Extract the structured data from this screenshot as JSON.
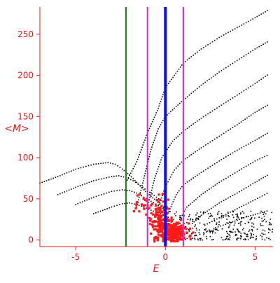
{
  "chart_data": {
    "type": "scatter",
    "title": "",
    "xlabel": "E",
    "ylabel": "<M>",
    "xlim": [
      -7.0,
      6.0
    ],
    "ylim": [
      -8,
      283
    ],
    "xticks": [
      -5,
      0,
      5
    ],
    "yticks": [
      0,
      50,
      100,
      150,
      200,
      250
    ],
    "grid": false,
    "axis_color": "#e8191a",
    "marker_color_black": "#000000",
    "marker_color_red": "#ff1a1a",
    "vertical_lines": [
      {
        "x": -2.2,
        "color": "#1a7f1a"
      },
      {
        "x": -1.0,
        "color": "#e020e0"
      },
      {
        "x": 0.0,
        "color": "#0a0aff"
      },
      {
        "x": 1.0,
        "color": "#e020e0"
      }
    ],
    "black_series": {
      "curves": [
        {
          "points": [
            [
              -7.0,
              69
            ],
            [
              -6.0,
              77
            ],
            [
              -5.0,
              86
            ],
            [
              -4.0,
              92
            ],
            [
              -3.2,
              94
            ],
            [
              -2.8,
              92
            ],
            [
              -2.4,
              86
            ],
            [
              -2.0,
              79
            ],
            [
              -1.6,
              70
            ],
            [
              -1.2,
              61
            ],
            [
              -0.8,
              53
            ],
            [
              -0.4,
              46
            ],
            [
              0.0,
              38
            ]
          ]
        },
        {
          "points": [
            [
              -6.0,
              55
            ],
            [
              -5.0,
              64
            ],
            [
              -4.0,
              72
            ],
            [
              -3.0,
              77
            ],
            [
              -2.6,
              78
            ],
            [
              -2.2,
              76
            ],
            [
              -1.8,
              72
            ],
            [
              -1.4,
              66
            ],
            [
              -1.0,
              60
            ],
            [
              -0.5,
              52
            ],
            [
              0.0,
              44
            ]
          ]
        },
        {
          "points": [
            [
              -5.0,
              43
            ],
            [
              -4.0,
              52
            ],
            [
              -3.0,
              59
            ],
            [
              -2.4,
              61
            ],
            [
              -2.0,
              60
            ],
            [
              -1.6,
              57
            ],
            [
              -1.2,
              52
            ],
            [
              -0.8,
              47
            ],
            [
              -0.4,
              42
            ],
            [
              0.0,
              37
            ]
          ]
        },
        {
          "points": [
            [
              -4.0,
              32
            ],
            [
              -3.0,
              40
            ],
            [
              -2.4,
              44
            ],
            [
              -2.0,
              45
            ],
            [
              -1.6,
              43
            ],
            [
              -1.2,
              40
            ],
            [
              -0.8,
              36
            ],
            [
              -0.4,
              33
            ],
            [
              0.0,
              30
            ]
          ]
        },
        {
          "points": [
            [
              -2.2,
              70
            ],
            [
              -1.6,
              95
            ],
            [
              -1.0,
              130
            ],
            [
              -0.4,
              160
            ],
            [
              0.0,
              185
            ],
            [
              1.0,
              215
            ],
            [
              2.0,
              232
            ],
            [
              3.0,
              246
            ],
            [
              4.0,
              258
            ],
            [
              5.0,
              270
            ],
            [
              5.8,
              280
            ]
          ]
        },
        {
          "points": [
            [
              -1.6,
              40
            ],
            [
              -1.2,
              75
            ],
            [
              -0.8,
              110
            ],
            [
              -0.4,
              135
            ],
            [
              0.0,
              150
            ],
            [
              1.0,
              170
            ],
            [
              2.0,
              188
            ],
            [
              3.0,
              204
            ],
            [
              4.0,
              218
            ],
            [
              5.0,
              232
            ],
            [
              5.8,
              242
            ]
          ]
        },
        {
          "points": [
            [
              -1.0,
              40
            ],
            [
              -0.6,
              75
            ],
            [
              -0.2,
              100
            ],
            [
              0.4,
              120
            ],
            [
              1.0,
              132
            ],
            [
              2.0,
              148
            ],
            [
              3.0,
              162
            ],
            [
              4.0,
              176
            ],
            [
              5.0,
              190
            ],
            [
              5.8,
              202
            ]
          ]
        },
        {
          "points": [
            [
              -0.4,
              40
            ],
            [
              0.0,
              65
            ],
            [
              0.5,
              85
            ],
            [
              1.0,
              97
            ],
            [
              2.0,
              112
            ],
            [
              3.0,
              126
            ],
            [
              4.0,
              140
            ],
            [
              5.0,
              155
            ],
            [
              5.8,
              165
            ]
          ]
        },
        {
          "points": [
            [
              0.2,
              35
            ],
            [
              0.6,
              55
            ],
            [
              1.0,
              67
            ],
            [
              2.0,
              82
            ],
            [
              3.0,
              96
            ],
            [
              4.0,
              109
            ],
            [
              5.0,
              121
            ],
            [
              5.8,
              131
            ]
          ]
        },
        {
          "points": [
            [
              0.8,
              25
            ],
            [
              1.2,
              40
            ],
            [
              2.0,
              55
            ],
            [
              3.0,
              70
            ],
            [
              4.0,
              83
            ],
            [
              5.0,
              96
            ],
            [
              5.8,
              104
            ]
          ]
        },
        {
          "points": [
            [
              1.5,
              20
            ],
            [
              2.0,
              30
            ],
            [
              3.0,
              45
            ],
            [
              4.0,
              57
            ],
            [
              5.0,
              70
            ],
            [
              5.8,
              80
            ]
          ]
        },
        {
          "points": [
            [
              2.2,
              18
            ],
            [
              3.0,
              27
            ],
            [
              4.0,
              38
            ],
            [
              5.0,
              49
            ],
            [
              5.8,
              58
            ]
          ]
        },
        {
          "points": [
            [
              2.8,
              15
            ],
            [
              3.5,
              20
            ],
            [
              4.5,
              28
            ],
            [
              5.8,
              36
            ]
          ]
        }
      ],
      "cloud": {
        "x_range": [
          0.0,
          6.0
        ],
        "y_range": [
          0,
          35
        ],
        "count": 320
      }
    },
    "red_series": {
      "clusters": [
        {
          "x": -0.35,
          "y": 28,
          "sx": 0.25,
          "sy": 12,
          "n": 120
        },
        {
          "x": 0.25,
          "y": 10,
          "sx": 0.3,
          "sy": 7,
          "n": 180
        },
        {
          "x": 0.6,
          "y": 5,
          "sx": 0.3,
          "sy": 5,
          "n": 80
        },
        {
          "x": -1.4,
          "y": 45,
          "sx": 0.3,
          "sy": 6,
          "n": 16
        },
        {
          "x": 0.9,
          "y": 12,
          "sx": 0.2,
          "sy": 4,
          "n": 20
        }
      ]
    }
  }
}
